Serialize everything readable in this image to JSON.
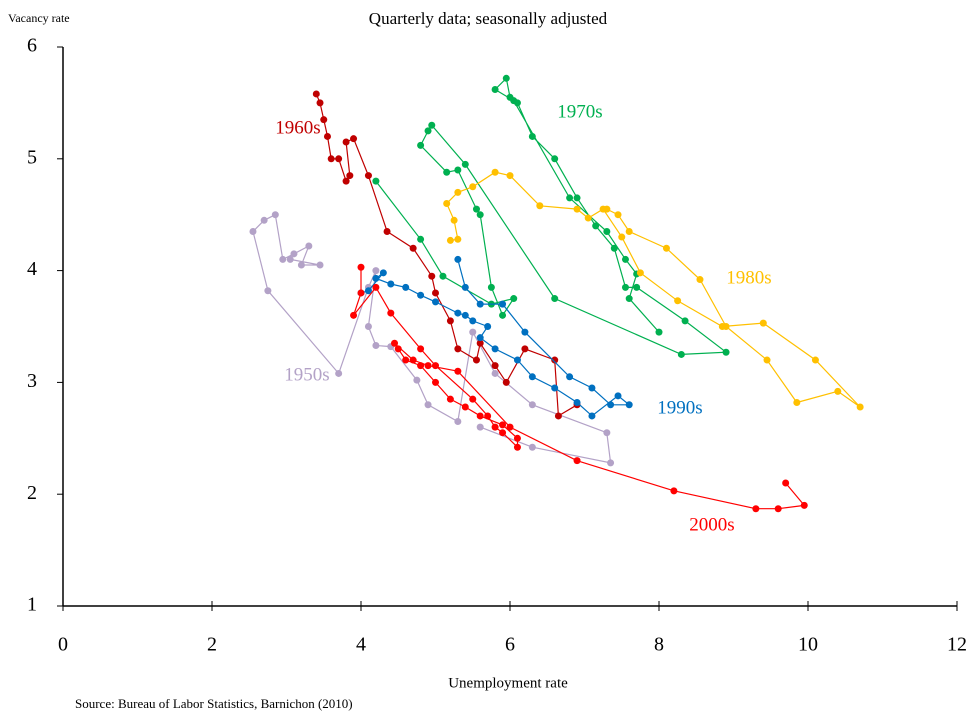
{
  "chart_data": {
    "type": "line",
    "title": "Quarterly data; seasonally adjusted",
    "y_label": "Vacancy rate",
    "x_label": "Unemployment rate",
    "source": "Source: Bureau of Labor Statistics, Barnichon (2010)",
    "xlim": [
      0,
      12
    ],
    "xticks": [
      0,
      2,
      4,
      6,
      8,
      10,
      12
    ],
    "ylim": [
      1,
      6
    ],
    "yticks": [
      1,
      2,
      3,
      4,
      5,
      6
    ],
    "grid": false,
    "series": [
      {
        "name": "1950s",
        "color": "#b3a2c7",
        "x": [
          5.6,
          6.3,
          7.35,
          7.3,
          6.3,
          5.8,
          5.5,
          5.3,
          4.9,
          4.75,
          4.4,
          4.2,
          4.1,
          4.2,
          4.1,
          3.7,
          2.75,
          2.55,
          2.7,
          2.85,
          2.95,
          3.1,
          3.3,
          3.2,
          3.45,
          3.05
        ],
        "values": [
          2.6,
          2.42,
          2.28,
          2.55,
          2.8,
          3.08,
          3.45,
          2.65,
          2.8,
          3.02,
          3.32,
          3.33,
          3.5,
          4.0,
          3.85,
          3.08,
          3.82,
          4.35,
          4.45,
          4.5,
          4.1,
          4.15,
          4.22,
          4.05,
          4.05,
          4.1
        ]
      },
      {
        "name": "1960s",
        "color": "#c00000",
        "x": [
          6.9,
          6.65,
          6.6,
          6.2,
          5.95,
          5.8,
          5.6,
          5.55,
          5.3,
          5.2,
          5.0,
          4.95,
          4.7,
          4.35,
          4.1,
          3.9,
          3.8,
          3.85,
          3.8,
          3.7,
          3.6,
          3.55,
          3.5,
          3.45,
          3.4
        ],
        "values": [
          2.8,
          2.7,
          3.2,
          3.3,
          3.0,
          3.15,
          3.35,
          3.2,
          3.3,
          3.55,
          3.8,
          3.95,
          4.2,
          4.35,
          4.85,
          5.18,
          5.15,
          4.85,
          4.8,
          5.0,
          5.0,
          5.2,
          5.35,
          5.5,
          5.58
        ]
      },
      {
        "name": "1970s",
        "color": "#00b050",
        "x": [
          4.2,
          4.8,
          5.1,
          5.75,
          6.05,
          5.9,
          5.75,
          5.6,
          5.55,
          5.3,
          5.15,
          4.8,
          4.9,
          4.95,
          5.4,
          6.6,
          8.3,
          8.9,
          8.35,
          7.7,
          7.55,
          7.4,
          7.15,
          6.9,
          6.6,
          6.3,
          6.1,
          5.8,
          5.95,
          6.0,
          6.05,
          6.8,
          7.3,
          7.55,
          7.7,
          7.6,
          8.0
        ],
        "values": [
          4.8,
          4.28,
          3.95,
          3.7,
          3.75,
          3.6,
          3.85,
          4.5,
          4.55,
          4.9,
          4.88,
          5.12,
          5.25,
          5.3,
          4.95,
          3.75,
          3.25,
          3.27,
          3.55,
          3.85,
          3.85,
          4.2,
          4.4,
          4.65,
          5.0,
          5.2,
          5.5,
          5.62,
          5.72,
          5.55,
          5.52,
          4.65,
          4.35,
          4.1,
          3.97,
          3.75,
          3.45
        ]
      },
      {
        "name": "1980s",
        "color": "#ffc000",
        "x": [
          7.3,
          7.45,
          7.6,
          8.1,
          8.55,
          8.9,
          9.45,
          9.85,
          10.4,
          10.7,
          10.1,
          9.4,
          8.85,
          8.25,
          7.75,
          7.5,
          7.25,
          7.05,
          6.9,
          6.4,
          6.0,
          5.8,
          5.5,
          5.3,
          5.15,
          5.25,
          5.3,
          5.2
        ],
        "values": [
          4.55,
          4.5,
          4.35,
          4.2,
          3.92,
          3.5,
          3.2,
          2.82,
          2.92,
          2.78,
          3.2,
          3.53,
          3.5,
          3.73,
          3.98,
          4.3,
          4.55,
          4.47,
          4.55,
          4.58,
          4.85,
          4.88,
          4.75,
          4.7,
          4.6,
          4.45,
          4.28,
          4.27
        ]
      },
      {
        "name": "1990s",
        "color": "#0070c0",
        "x": [
          5.3,
          5.4,
          5.6,
          5.9,
          6.2,
          6.8,
          7.1,
          7.35,
          7.6,
          7.45,
          7.1,
          6.9,
          6.6,
          6.3,
          6.1,
          5.8,
          5.6,
          5.7,
          5.5,
          5.4,
          5.3,
          5.0,
          4.8,
          4.6,
          4.4,
          4.2,
          4.3,
          4.1,
          4.0
        ],
        "values": [
          4.1,
          3.85,
          3.7,
          3.7,
          3.45,
          3.05,
          2.95,
          2.8,
          2.8,
          2.88,
          2.7,
          2.82,
          2.95,
          3.05,
          3.2,
          3.3,
          3.4,
          3.5,
          3.55,
          3.6,
          3.62,
          3.72,
          3.78,
          3.85,
          3.88,
          3.93,
          3.98,
          3.82,
          3.8
        ]
      },
      {
        "name": "2000s",
        "color": "#ff0000",
        "x": [
          4.0,
          4.0,
          3.9,
          4.2,
          4.4,
          4.8,
          5.0,
          5.5,
          5.7,
          5.8,
          5.9,
          6.1,
          6.1,
          5.9,
          5.6,
          5.4,
          5.2,
          5.0,
          4.8,
          4.6,
          4.5,
          4.45,
          4.7,
          4.9,
          5.3,
          6.0,
          6.9,
          8.2,
          9.3,
          9.6,
          9.95,
          9.7
        ],
        "values": [
          4.03,
          3.8,
          3.6,
          3.85,
          3.62,
          3.3,
          3.15,
          2.85,
          2.7,
          2.6,
          2.55,
          2.42,
          2.5,
          2.62,
          2.7,
          2.78,
          2.85,
          3.0,
          3.15,
          3.2,
          3.3,
          3.35,
          3.2,
          3.15,
          3.1,
          2.6,
          2.3,
          2.03,
          1.87,
          1.87,
          1.9,
          2.1
        ]
      }
    ]
  }
}
